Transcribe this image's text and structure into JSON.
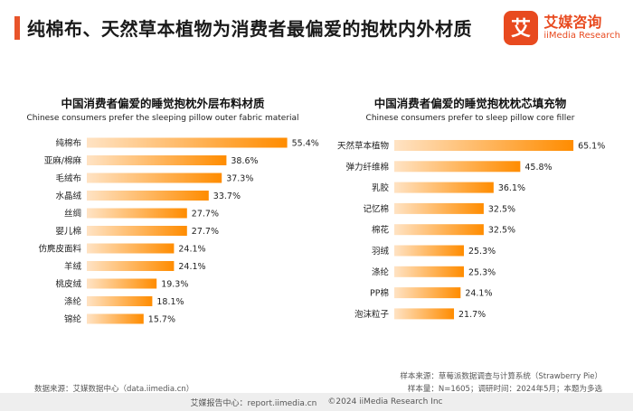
{
  "page": {
    "title": "纯棉布、天然草本植物为消费者最偏爱的抱枕内外材质"
  },
  "logo": {
    "mark": "艾",
    "name_cn": "艾媒咨询",
    "name_en": "iiMedia Research"
  },
  "colors": {
    "accent": "#e8542a",
    "bar_start": "#ffe3c4",
    "bar_end": "#ff8c00"
  },
  "chart_data": [
    {
      "type": "bar",
      "orientation": "horizontal",
      "title": "中国消费者偏爱的睡觉抱枕外层布料材质",
      "subtitle": "Chinese consumers prefer the sleeping pillow outer fabric material",
      "categories": [
        "纯棉布",
        "亚麻/棉麻",
        "毛绒布",
        "水晶绒",
        "丝绸",
        "婴儿棉",
        "仿麂皮面料",
        "羊绒",
        "桃皮绒",
        "涤纶",
        "锦纶"
      ],
      "values": [
        55.4,
        38.6,
        37.3,
        33.7,
        27.7,
        27.7,
        24.1,
        24.1,
        19.3,
        18.1,
        15.7
      ],
      "labels": [
        "55.4%",
        "38.6%",
        "37.3%",
        "33.7%",
        "27.7%",
        "27.7%",
        "24.1%",
        "24.1%",
        "19.3%",
        "18.1%",
        "15.7%"
      ],
      "unit": "%",
      "xlim": [
        0,
        60
      ]
    },
    {
      "type": "bar",
      "orientation": "horizontal",
      "title": "中国消费者偏爱的睡觉抱枕枕芯填充物",
      "subtitle": "Chinese consumers prefer to sleep pillow core filler",
      "categories": [
        "天然草本植物",
        "弹力纤维棉",
        "乳胶",
        "记忆棉",
        "棉花",
        "羽绒",
        "涤纶",
        "PP棉",
        "泡沫粒子"
      ],
      "values": [
        65.1,
        45.8,
        36.1,
        32.5,
        32.5,
        25.3,
        25.3,
        24.1,
        21.7
      ],
      "labels": [
        "65.1%",
        "45.8%",
        "36.1%",
        "32.5%",
        "32.5%",
        "25.3%",
        "25.3%",
        "24.1%",
        "21.7%"
      ],
      "unit": "%",
      "xlim": [
        0,
        70
      ]
    }
  ],
  "notes": {
    "source_left": "数据来源：艾媒数据中心（data.iimedia.cn）",
    "source_right": "样本来源：草莓派数据调查与计算系统（Strawberry Pie）",
    "sample_right": "样本量：N=1605；调研时间：2024年5月；本题为多选"
  },
  "footer": {
    "center": "艾媒报告中心：report.iimedia.cn",
    "copyright": "©2024  iiMedia Research Inc"
  }
}
